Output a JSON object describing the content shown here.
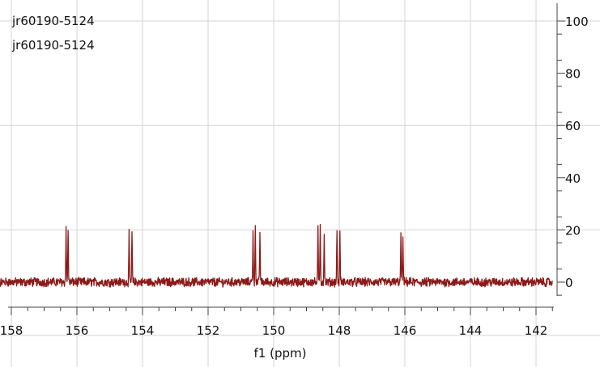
{
  "chart_data": {
    "type": "line",
    "title_lines": [
      "jr60190-5124",
      "jr60190-5124"
    ],
    "xlabel": "f1 (ppm)",
    "ylabel": "",
    "x_reversed": true,
    "xlim": [
      158.9,
      141.2
    ],
    "ylim": [
      -10,
      103
    ],
    "x_ticks": [
      158,
      156,
      154,
      152,
      150,
      148,
      146,
      144,
      142
    ],
    "y_ticks": [
      0,
      20,
      40,
      60,
      80,
      100
    ],
    "grid": true,
    "line_color": "#8b1a1a",
    "noise_amplitude": 1.5,
    "peaks": [
      {
        "x": 156.33,
        "y": 21.5
      },
      {
        "x": 156.27,
        "y": 20.5
      },
      {
        "x": 154.41,
        "y": 18.5
      },
      {
        "x": 154.32,
        "y": 19.0
      },
      {
        "x": 150.63,
        "y": 20.0
      },
      {
        "x": 150.56,
        "y": 22.0
      },
      {
        "x": 150.42,
        "y": 19.5
      },
      {
        "x": 148.65,
        "y": 20.0
      },
      {
        "x": 148.58,
        "y": 23.0
      },
      {
        "x": 148.46,
        "y": 18.5
      },
      {
        "x": 148.07,
        "y": 20.5
      },
      {
        "x": 147.98,
        "y": 19.5
      },
      {
        "x": 146.12,
        "y": 17.5
      },
      {
        "x": 146.06,
        "y": 18.0
      }
    ]
  }
}
